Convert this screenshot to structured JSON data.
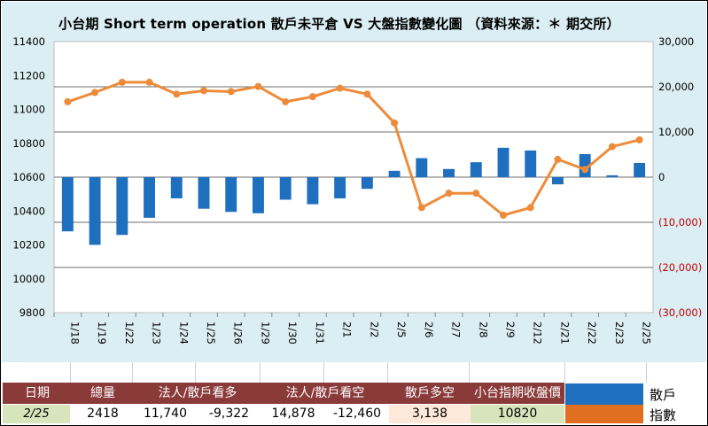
{
  "chart_data": {
    "type": "bar+line",
    "title": "小台期 Short term operation  散戶未平倉 VS 大盤指數變化圖  （資料來源：＊ 期交所）",
    "categories": [
      "1/18",
      "1/19",
      "1/22",
      "1/23",
      "1/24",
      "1/25",
      "1/26",
      "1/29",
      "1/30",
      "1/31",
      "2/1",
      "2/2",
      "2/5",
      "2/6",
      "2/7",
      "2/8",
      "2/9",
      "2/12",
      "2/21",
      "2/22",
      "2/23",
      "2/25"
    ],
    "series": [
      {
        "name": "散戶",
        "type": "bar",
        "axis": "right",
        "color": "#1f6fbf",
        "values": [
          -12000,
          -15000,
          -12800,
          -9000,
          -4700,
          -7000,
          -7700,
          -8000,
          -5000,
          -6000,
          -4700,
          -2600,
          1400,
          4200,
          1800,
          3300,
          6500,
          5900,
          -1600,
          5100,
          400,
          3138
        ]
      },
      {
        "name": "指數",
        "type": "line",
        "axis": "left",
        "color": "#ed8b3a",
        "values": [
          11045,
          11100,
          11160,
          11160,
          11090,
          11110,
          11105,
          11135,
          11045,
          11075,
          11125,
          11090,
          10920,
          10420,
          10505,
          10505,
          10375,
          10420,
          10705,
          10645,
          10780,
          10820
        ]
      }
    ],
    "left_axis": {
      "min": 9800,
      "max": 11400,
      "step": 200,
      "ticks": [
        "11400",
        "11200",
        "11000",
        "10800",
        "10600",
        "10400",
        "10200",
        "10000",
        "9800"
      ]
    },
    "right_axis": {
      "min": -30000,
      "max": 30000,
      "step": 10000,
      "ticks": [
        "30,000",
        "20,000",
        "10,000",
        "0",
        "(10,000)",
        "(20,000)",
        "(30,000)"
      ]
    }
  },
  "table": {
    "headers": [
      "日期",
      "總量",
      "法人/散戶看多",
      "法人/散戶看空",
      "散戶多空",
      "小台指期收盤價"
    ],
    "row": {
      "date": "2/25",
      "total": "2418",
      "long_inst": "11,740",
      "long_retail": "-9,322",
      "short_inst": "14,878",
      "short_retail": "-12,460",
      "retail_net": "3,138",
      "close": "10820"
    }
  },
  "legend": {
    "bar_label": "散戶",
    "line_label": "指數",
    "bar_color": "#1f6fbf",
    "line_color": "#e07020"
  },
  "colors": {
    "chart_bg": "#dbeef4",
    "header_bg": "#8b3a3a",
    "date_cell": "#d8e4bc",
    "net_cell": "#fde9d9",
    "close_cell": "#d8e4bc",
    "right_axis_negative": "#c00000"
  }
}
